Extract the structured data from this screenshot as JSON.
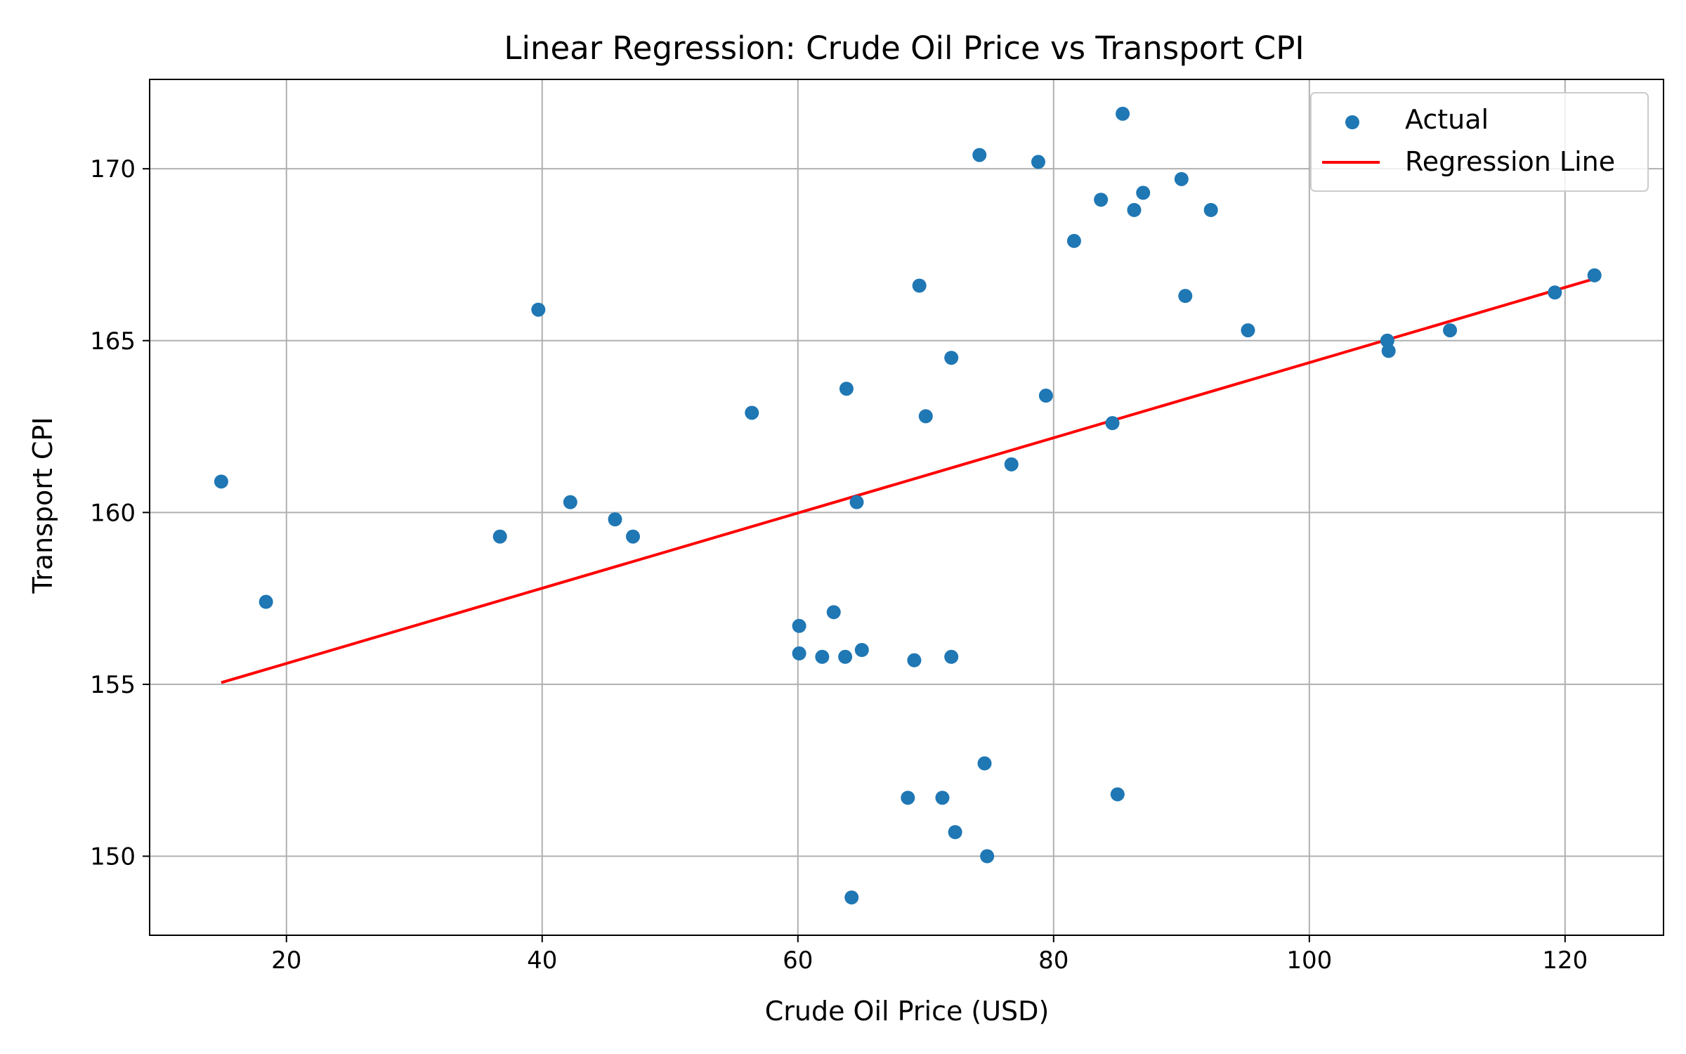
{
  "chart_data": {
    "type": "scatter",
    "title": "Linear Regression: Crude Oil Price vs Transport CPI",
    "xlabel": "Crude Oil Price (USD)",
    "ylabel": "Transport CPI",
    "xlim": [
      9.3,
      127.7
    ],
    "ylim": [
      147.7,
      172.6
    ],
    "xticks": [
      20,
      40,
      60,
      80,
      100,
      120
    ],
    "yticks": [
      150,
      155,
      160,
      165,
      170
    ],
    "grid": true,
    "legend_position": "top-right",
    "colors": {
      "scatter": "#1f77b4",
      "regression": "#ff0000"
    },
    "series": [
      {
        "name": "Actual",
        "kind": "scatter",
        "points": [
          [
            14.9,
            160.9
          ],
          [
            18.4,
            157.4
          ],
          [
            36.7,
            159.3
          ],
          [
            39.7,
            165.9
          ],
          [
            42.2,
            160.3
          ],
          [
            45.7,
            159.8
          ],
          [
            47.1,
            159.3
          ],
          [
            56.4,
            162.9
          ],
          [
            60.1,
            156.7
          ],
          [
            60.1,
            155.9
          ],
          [
            61.9,
            155.8
          ],
          [
            62.8,
            157.1
          ],
          [
            63.7,
            155.8
          ],
          [
            63.8,
            163.6
          ],
          [
            64.2,
            148.8
          ],
          [
            64.6,
            160.3
          ],
          [
            65.0,
            156.0
          ],
          [
            68.6,
            151.7
          ],
          [
            69.1,
            155.7
          ],
          [
            69.5,
            166.6
          ],
          [
            70.0,
            162.8
          ],
          [
            71.3,
            151.7
          ],
          [
            72.0,
            164.5
          ],
          [
            72.0,
            155.8
          ],
          [
            72.3,
            150.7
          ],
          [
            74.2,
            170.4
          ],
          [
            74.6,
            152.7
          ],
          [
            74.8,
            150.0
          ],
          [
            76.7,
            161.4
          ],
          [
            78.8,
            170.2
          ],
          [
            79.4,
            163.4
          ],
          [
            81.6,
            167.9
          ],
          [
            83.7,
            169.1
          ],
          [
            84.6,
            162.6
          ],
          [
            85.0,
            151.8
          ],
          [
            85.4,
            171.6
          ],
          [
            86.3,
            168.8
          ],
          [
            87.0,
            169.3
          ],
          [
            90.0,
            169.7
          ],
          [
            90.3,
            166.3
          ],
          [
            92.3,
            168.8
          ],
          [
            95.2,
            165.3
          ],
          [
            106.1,
            165.0
          ],
          [
            106.2,
            164.7
          ],
          [
            111.0,
            165.3
          ],
          [
            119.2,
            166.4
          ],
          [
            122.3,
            166.9
          ]
        ]
      },
      {
        "name": "Regression Line",
        "kind": "line",
        "points": [
          [
            14.9,
            155.05
          ],
          [
            122.3,
            166.8
          ]
        ]
      }
    ]
  }
}
